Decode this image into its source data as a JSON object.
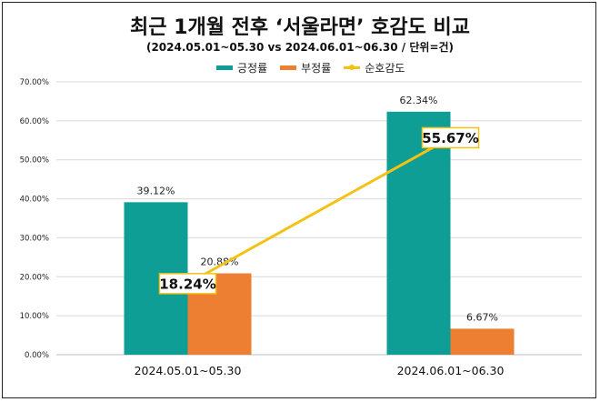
{
  "colors": {
    "positive": "#0E9E95",
    "negative": "#EC7F32",
    "line": "#F2C315",
    "grid": "#D9D9D9"
  },
  "chart_data": {
    "type": "bar",
    "title": "최근 1개월 전후 ‘서울라면’ 호감도 비교",
    "subtitle": "(2024.05.01~05.30 vs 2024.06.01~06.30 / 단위=건)",
    "categories": [
      "2024.05.01~05.30",
      "2024.06.01~06.30"
    ],
    "series": [
      {
        "name": "긍정률",
        "kind": "bar",
        "values": [
          39.12,
          62.34
        ],
        "labels": [
          "39.12%",
          "62.34%"
        ]
      },
      {
        "name": "부정률",
        "kind": "bar",
        "values": [
          20.88,
          6.67
        ],
        "labels": [
          "20.88%",
          "6.67%"
        ]
      },
      {
        "name": "순호감도",
        "kind": "line",
        "values": [
          18.24,
          55.67
        ],
        "labels": [
          "18.24%",
          "55.67%"
        ]
      }
    ],
    "yticks": [
      "0.00%",
      "10.00%",
      "20.00%",
      "30.00%",
      "40.00%",
      "50.00%",
      "60.00%",
      "70.00%"
    ],
    "ylim": [
      0,
      70
    ],
    "legend_position": "top-center"
  }
}
